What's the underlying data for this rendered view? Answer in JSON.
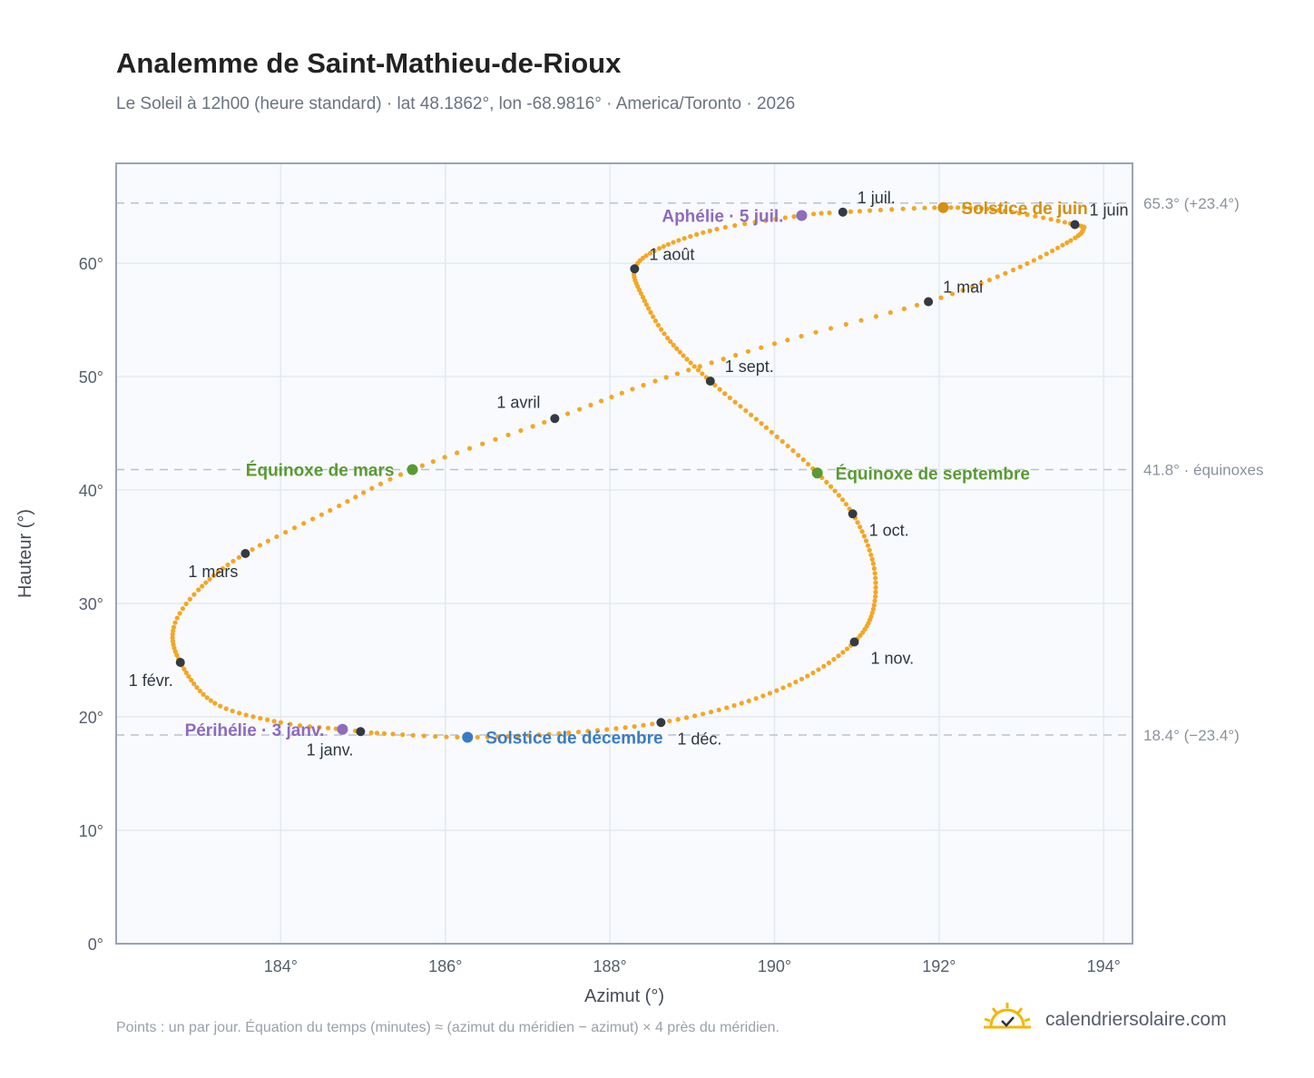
{
  "title": "Analemme de Saint-Mathieu-de-Rioux",
  "subtitle": "Le Soleil à 12h00 (heure standard) · lat 48.1862°, lon -68.9816° · America/Toronto · 2026",
  "footnote": "Points : un par jour. Équation du temps (minutes) ≈ (azimut du méridien − azimut) × 4 près du méridien.",
  "brand": {
    "name": "calendriersolaire.com",
    "icon": "sun-check-icon"
  },
  "colors": {
    "curve": "#f5a623",
    "month_marker": "#333a44",
    "equinox": "#5a9a32",
    "solstice_june": "#d4900f",
    "solstice_december": "#3b7bc4",
    "apsis": "#8e6bbd",
    "reference_line": "#b9c3cf",
    "frame": "#9aa5b4",
    "plot_background": "#f8fafd",
    "grid": "#e4e9ef"
  },
  "chart_data": {
    "type": "scatter",
    "xlabel": "Azimut (°)",
    "ylabel": "Hauteur (°)",
    "xlim": [
      182.0,
      194.35
    ],
    "ylim": [
      0,
      68.8
    ],
    "x_ticks": [
      184,
      186,
      188,
      190,
      192,
      194
    ],
    "x_tick_labels": [
      "184°",
      "186°",
      "188°",
      "190°",
      "192°",
      "194°"
    ],
    "y_ticks": [
      0,
      10,
      20,
      30,
      40,
      50,
      60
    ],
    "y_tick_labels": [
      "0°",
      "10°",
      "20°",
      "30°",
      "40°",
      "50°",
      "60°"
    ],
    "grid": true,
    "curve_anchors": [
      {
        "day": 1,
        "az": 184.97,
        "alt": 18.7
      },
      {
        "day": 3,
        "az": 184.75,
        "alt": 18.9
      },
      {
        "day": 10,
        "az": 184.0,
        "alt": 19.5
      },
      {
        "day": 20,
        "az": 183.2,
        "alt": 21.2
      },
      {
        "day": 32,
        "az": 182.78,
        "alt": 24.8
      },
      {
        "day": 42,
        "az": 182.7,
        "alt": 27.9
      },
      {
        "day": 50,
        "az": 183.0,
        "alt": 31.2
      },
      {
        "day": 60,
        "az": 183.57,
        "alt": 34.4
      },
      {
        "day": 70,
        "az": 184.6,
        "alt": 38.2
      },
      {
        "day": 79,
        "az": 185.6,
        "alt": 41.8
      },
      {
        "day": 91,
        "az": 187.33,
        "alt": 46.3
      },
      {
        "day": 100,
        "az": 188.55,
        "alt": 49.6
      },
      {
        "day": 110,
        "az": 190.0,
        "alt": 52.9
      },
      {
        "day": 121,
        "az": 191.87,
        "alt": 56.6
      },
      {
        "day": 130,
        "az": 192.9,
        "alt": 59.4
      },
      {
        "day": 140,
        "az": 193.6,
        "alt": 62.0
      },
      {
        "day": 147,
        "az": 193.75,
        "alt": 63.0
      },
      {
        "day": 152,
        "az": 193.65,
        "alt": 63.4
      },
      {
        "day": 162,
        "az": 192.8,
        "alt": 64.6
      },
      {
        "day": 172,
        "az": 192.05,
        "alt": 64.9
      },
      {
        "day": 182,
        "az": 190.83,
        "alt": 64.5
      },
      {
        "day": 186,
        "az": 190.33,
        "alt": 64.2
      },
      {
        "day": 195,
        "az": 189.3,
        "alt": 63.0
      },
      {
        "day": 205,
        "az": 188.6,
        "alt": 61.3
      },
      {
        "day": 213,
        "az": 188.3,
        "alt": 59.5
      },
      {
        "day": 222,
        "az": 188.4,
        "alt": 57.0
      },
      {
        "day": 232,
        "az": 188.7,
        "alt": 53.4
      },
      {
        "day": 244,
        "az": 189.22,
        "alt": 49.6
      },
      {
        "day": 255,
        "az": 189.9,
        "alt": 45.5
      },
      {
        "day": 265,
        "az": 190.52,
        "alt": 41.5
      },
      {
        "day": 274,
        "az": 190.95,
        "alt": 37.9
      },
      {
        "day": 285,
        "az": 191.2,
        "alt": 33.5
      },
      {
        "day": 295,
        "az": 191.2,
        "alt": 29.5
      },
      {
        "day": 305,
        "az": 190.97,
        "alt": 26.6
      },
      {
        "day": 315,
        "az": 190.4,
        "alt": 23.6
      },
      {
        "day": 325,
        "az": 189.6,
        "alt": 21.2
      },
      {
        "day": 335,
        "az": 188.62,
        "alt": 19.5
      },
      {
        "day": 345,
        "az": 187.5,
        "alt": 18.6
      },
      {
        "day": 355,
        "az": 186.27,
        "alt": 18.2
      },
      {
        "day": 365,
        "az": 185.1,
        "alt": 18.6
      }
    ],
    "month_markers": [
      {
        "label": "1 janv.",
        "az": 184.97,
        "alt": 18.7,
        "anchor": "below-left"
      },
      {
        "label": "1 févr.",
        "az": 182.78,
        "alt": 24.8,
        "anchor": "below-left"
      },
      {
        "label": "1 mars",
        "az": 183.57,
        "alt": 34.4,
        "anchor": "below-left"
      },
      {
        "label": "1 avril",
        "az": 187.33,
        "alt": 46.3,
        "anchor": "above-left"
      },
      {
        "label": "1 mai",
        "az": 191.87,
        "alt": 56.6,
        "anchor": "above-right"
      },
      {
        "label": "1 juin",
        "az": 193.65,
        "alt": 63.4,
        "anchor": "above-right"
      },
      {
        "label": "1 juil.",
        "az": 190.83,
        "alt": 64.5,
        "anchor": "above-right"
      },
      {
        "label": "1 août",
        "az": 188.3,
        "alt": 59.5,
        "anchor": "above-right"
      },
      {
        "label": "1 sept.",
        "az": 189.22,
        "alt": 49.6,
        "anchor": "above-right"
      },
      {
        "label": "1 oct.",
        "az": 190.95,
        "alt": 37.9,
        "anchor": "below-right"
      },
      {
        "label": "1 nov.",
        "az": 190.97,
        "alt": 26.6,
        "anchor": "below-right"
      },
      {
        "label": "1 déc.",
        "az": 188.62,
        "alt": 19.5,
        "anchor": "below-right"
      }
    ],
    "events": [
      {
        "label": "Solstice de juin",
        "az": 192.05,
        "alt": 64.9,
        "kind": "solstice_june",
        "side": "right"
      },
      {
        "label": "Aphélie · 5 juil.",
        "az": 190.33,
        "alt": 64.2,
        "kind": "apsis",
        "side": "left"
      },
      {
        "label": "Équinoxe de mars",
        "az": 185.6,
        "alt": 41.8,
        "kind": "equinox",
        "side": "left"
      },
      {
        "label": "Équinoxe de septembre",
        "az": 190.52,
        "alt": 41.5,
        "kind": "equinox",
        "side": "right"
      },
      {
        "label": "Périhélie · 3 janv.",
        "az": 184.75,
        "alt": 18.9,
        "kind": "apsis",
        "side": "left"
      },
      {
        "label": "Solstice de décembre",
        "az": 186.27,
        "alt": 18.2,
        "kind": "solstice_december",
        "side": "right"
      }
    ],
    "reference_lines": [
      {
        "alt": 65.3,
        "label": "65.3° (+23.4°)"
      },
      {
        "alt": 41.8,
        "label": "41.8° · équinoxes"
      },
      {
        "alt": 18.4,
        "label": "18.4° (−23.4°)"
      }
    ]
  }
}
